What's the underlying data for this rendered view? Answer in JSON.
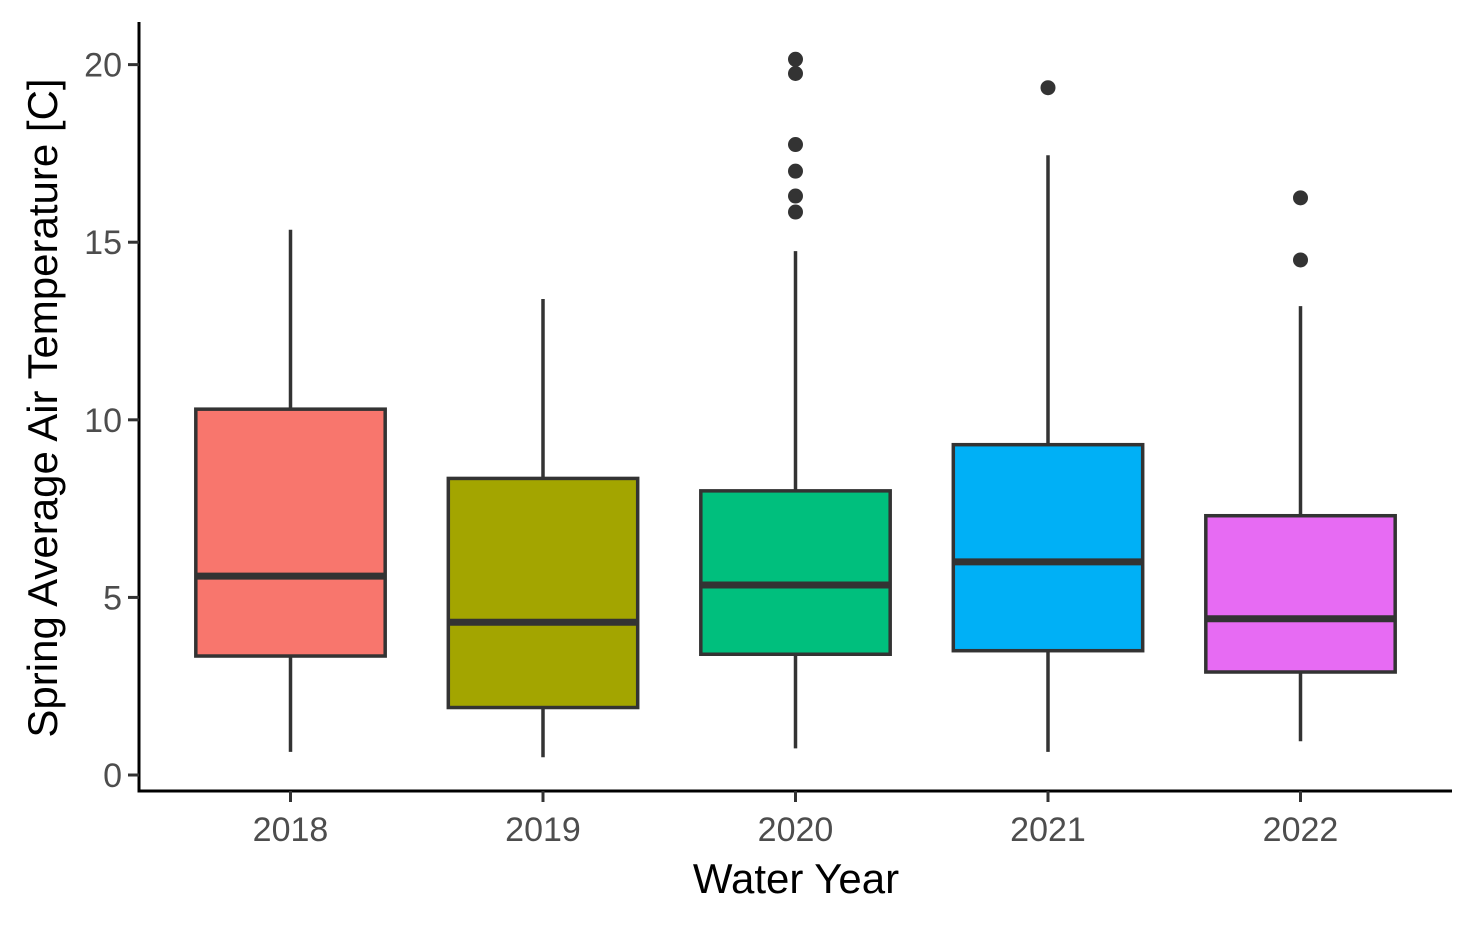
{
  "chart_data": {
    "type": "boxplot",
    "xlabel": "Water Year",
    "ylabel": "Spring Average Air Temperature [C]",
    "ylim": [
      -0.45,
      21.2
    ],
    "y_ticks": [
      0,
      5,
      10,
      15,
      20
    ],
    "categories": [
      "2018",
      "2019",
      "2020",
      "2021",
      "2022"
    ],
    "boxes": [
      {
        "category": "2018",
        "color": "#F8766D",
        "whisker_low": 0.65,
        "q1": 3.35,
        "median": 5.6,
        "q3": 10.3,
        "whisker_high": 15.35,
        "outliers": []
      },
      {
        "category": "2019",
        "color": "#A3A500",
        "whisker_low": 0.5,
        "q1": 1.9,
        "median": 4.3,
        "q3": 8.35,
        "whisker_high": 13.4,
        "outliers": []
      },
      {
        "category": "2020",
        "color": "#00BF7D",
        "whisker_low": 0.75,
        "q1": 3.4,
        "median": 5.35,
        "q3": 8.0,
        "whisker_high": 14.75,
        "outliers": [
          15.85,
          16.3,
          17.0,
          17.75,
          19.75,
          20.15
        ]
      },
      {
        "category": "2021",
        "color": "#00B0F6",
        "whisker_low": 0.65,
        "q1": 3.5,
        "median": 6.0,
        "q3": 9.3,
        "whisker_high": 17.45,
        "outliers": [
          19.35
        ]
      },
      {
        "category": "2022",
        "color": "#E76BF3",
        "whisker_low": 0.95,
        "q1": 2.9,
        "median": 4.4,
        "q3": 7.3,
        "whisker_high": 13.2,
        "outliers": [
          14.5,
          16.25
        ]
      }
    ],
    "legend": "none",
    "grid": false
  }
}
